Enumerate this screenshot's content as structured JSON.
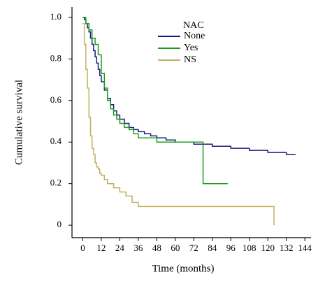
{
  "chart_data": {
    "type": "step",
    "x_label": "Time (months)",
    "y_label": "Cumulative survival",
    "legend_title": "NAC",
    "legend": "upper center",
    "xlim": [
      -7,
      148
    ],
    "ylim": [
      -0.06,
      1.05
    ],
    "xticks": [
      0,
      12,
      24,
      36,
      48,
      60,
      72,
      84,
      96,
      108,
      120,
      132,
      144
    ],
    "yticks": [
      0,
      0.2,
      0.4,
      0.6,
      0.8,
      {
        "value": 1.0,
        "label": "1.0"
      }
    ],
    "series": [
      {
        "name": "None",
        "color": "#1c1c80",
        "x": [
          0,
          1,
          2,
          3,
          4,
          5,
          6,
          7,
          8,
          9,
          10,
          11,
          12,
          14,
          16,
          18,
          20,
          22,
          24,
          27,
          30,
          33,
          36,
          40,
          44,
          48,
          54,
          60,
          66,
          72,
          84,
          96,
          108,
          120,
          132,
          138
        ],
        "values": [
          1,
          0.99,
          0.97,
          0.95,
          0.93,
          0.9,
          0.87,
          0.84,
          0.81,
          0.78,
          0.75,
          0.72,
          0.69,
          0.65,
          0.61,
          0.58,
          0.55,
          0.53,
          0.51,
          0.49,
          0.47,
          0.46,
          0.45,
          0.44,
          0.43,
          0.42,
          0.41,
          0.4,
          0.4,
          0.39,
          0.38,
          0.37,
          0.36,
          0.35,
          0.34,
          0.34
        ]
      },
      {
        "name": "Yes",
        "color": "#1a9c1a",
        "x": [
          0,
          2,
          4,
          6,
          8,
          10,
          12,
          14,
          16,
          18,
          20,
          22,
          24,
          27,
          30,
          33,
          36,
          48,
          78,
          94
        ],
        "values": [
          1,
          0.97,
          0.94,
          0.9,
          0.87,
          0.82,
          0.73,
          0.66,
          0.6,
          0.56,
          0.53,
          0.51,
          0.49,
          0.47,
          0.46,
          0.44,
          0.42,
          0.4,
          0.2,
          0.2
        ]
      },
      {
        "name": "NS",
        "color": "#bfb25e",
        "x": [
          0,
          1,
          2,
          3,
          4,
          5,
          6,
          7,
          8,
          9,
          10,
          11,
          12,
          14,
          16,
          20,
          24,
          28,
          32,
          36,
          60,
          124
        ],
        "values": [
          0.97,
          0.87,
          0.75,
          0.66,
          0.52,
          0.43,
          0.37,
          0.34,
          0.3,
          0.28,
          0.27,
          0.25,
          0.24,
          0.22,
          0.2,
          0.18,
          0.16,
          0.14,
          0.11,
          0.09,
          0.09,
          0
        ]
      }
    ]
  }
}
